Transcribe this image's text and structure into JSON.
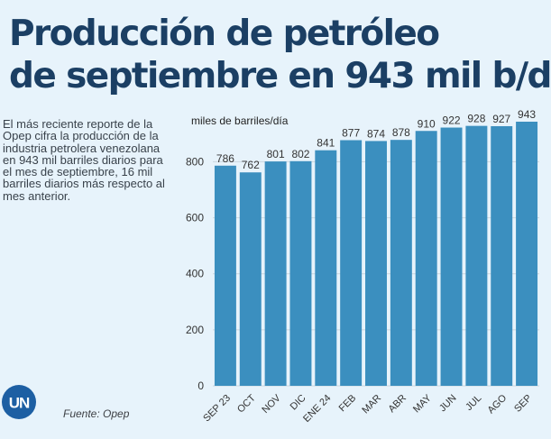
{
  "headline": {
    "line1": "Producción de petróleo",
    "line2": "de septiembre en 943 mil b/d"
  },
  "summary": "El más reciente reporte de la Opep cifra la producción de la industria petrolera venezolana en 943 mil barriles diarios para el mes de septiembre, 16 mil barriles diarios más respecto al mes anterior.",
  "source": "Fuente: Opep",
  "logo": {
    "text": "UN",
    "color": "#1d5fa3"
  },
  "colors": {
    "bar": "#3b8fbf",
    "headline": "#1b3f64",
    "background": "#e7f3fb"
  },
  "chart_data": {
    "type": "bar",
    "ylabel": "miles de barriles/día",
    "xlabel": "",
    "title": "",
    "categories": [
      "SEP 23",
      "OCT",
      "NOV",
      "DIC",
      "ENE 24",
      "FEB",
      "MAR",
      "ABR",
      "MAY",
      "JUN",
      "JUL",
      "AGO",
      "SEP"
    ],
    "values": [
      786,
      762,
      801,
      802,
      841,
      877,
      874,
      878,
      910,
      922,
      928,
      927,
      943
    ],
    "value_labels": [
      "786",
      "762",
      "801",
      "802",
      "841",
      "877",
      "874",
      "878",
      "910",
      "922",
      "928",
      "927",
      "943"
    ],
    "ylim": [
      0,
      943
    ],
    "yticks": [
      0,
      200,
      400,
      600,
      800
    ],
    "ytick_labels": [
      "0",
      "200",
      "400",
      "600",
      "800"
    ],
    "grid": true,
    "legend": "none"
  }
}
